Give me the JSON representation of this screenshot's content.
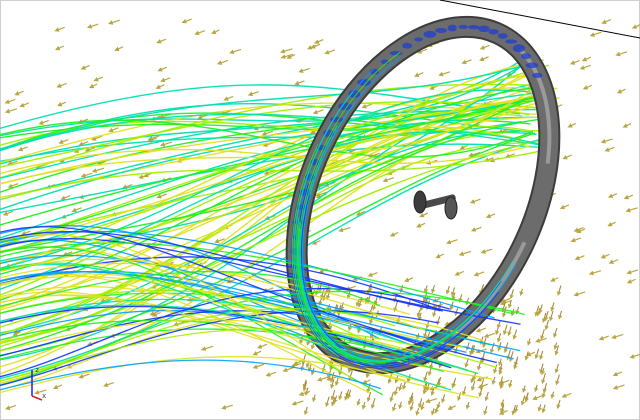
{
  "scene": {
    "background_color": "#ffffff",
    "frame_color": "#cfcfcf",
    "ground_line_color": "#000000"
  },
  "vectors": {
    "icon": "arrow-glyph",
    "color": "#b8a640",
    "dense_color": "#a88c3a"
  },
  "streamlines": {
    "colormap": [
      "#1030ff",
      "#00a0ff",
      "#00e0b0",
      "#20f020",
      "#a0f000",
      "#e0e020"
    ]
  },
  "wheel": {
    "tire_color": "#6c6c6c",
    "tire_edge_color": "#3c3c3c",
    "hub_color": "#4a4a4a",
    "pressure_color": "#1e3fd0"
  },
  "axis_triad": {
    "labels": {
      "z": "z",
      "x": "x"
    },
    "z_color": "#1c1cff",
    "x_color": "#d02020"
  }
}
